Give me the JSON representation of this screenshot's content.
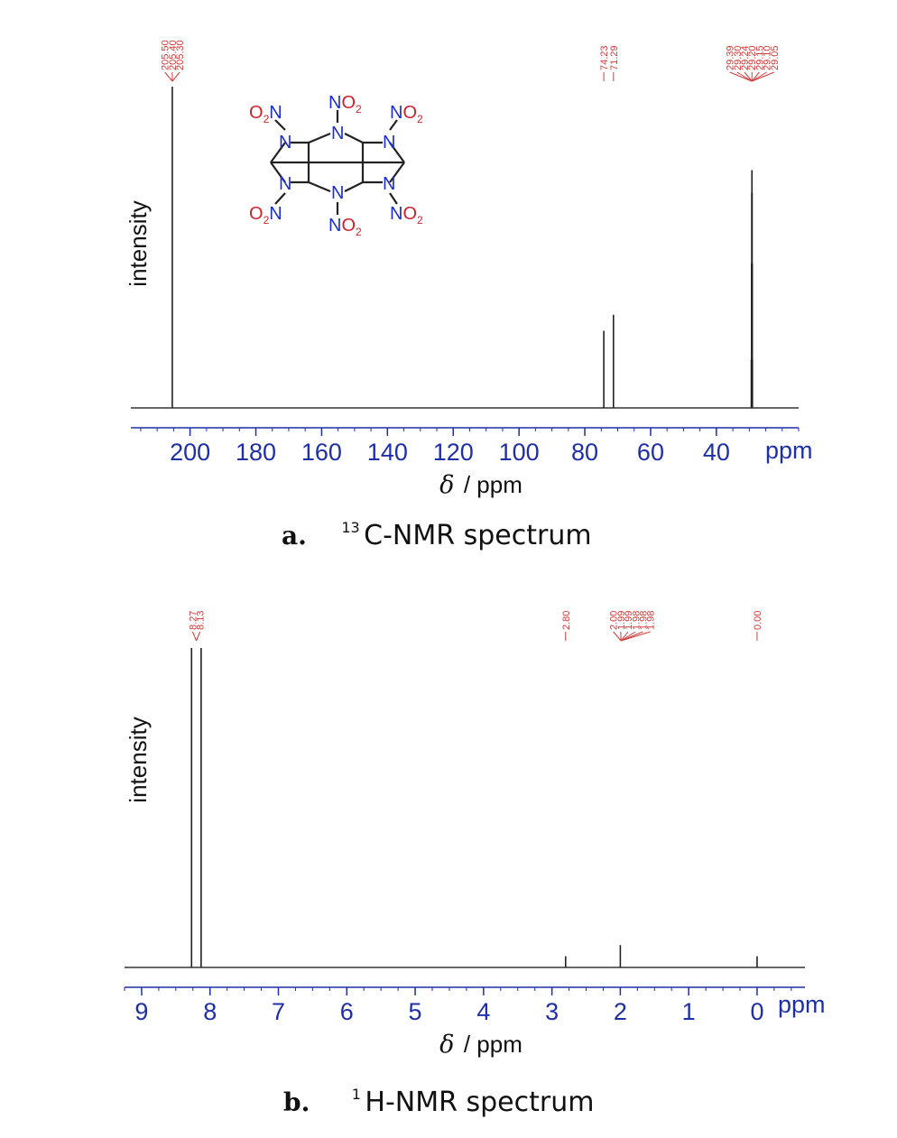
{
  "chart_data": [
    {
      "type": "line",
      "caption_letter": "a.",
      "caption_sup": "13",
      "caption_text": "C-NMR spectrum",
      "ylabel": "intensity",
      "xlabel": "/ ppm",
      "xlabel_symbol": "δ",
      "unit_label": "ppm",
      "xlim": [
        218,
        15
      ],
      "xticks": [
        200,
        180,
        160,
        140,
        120,
        100,
        80,
        60,
        40
      ],
      "peaks": [
        {
          "x": 205.4,
          "height": 1.0
        },
        {
          "x": 74.23,
          "height": 0.24
        },
        {
          "x": 71.29,
          "height": 0.29
        },
        {
          "x": 29.39,
          "height": 0.15
        },
        {
          "x": 29.3,
          "height": 0.45
        },
        {
          "x": 29.24,
          "height": 0.67
        },
        {
          "x": 29.2,
          "height": 0.74
        },
        {
          "x": 29.15,
          "height": 0.67
        },
        {
          "x": 29.1,
          "height": 0.45
        },
        {
          "x": 29.05,
          "height": 0.15
        }
      ],
      "peak_label_groups": [
        {
          "labels": [
            "205.50",
            "205.40",
            "205.30"
          ],
          "target_x": 205.4
        },
        {
          "labels": [
            "74.23"
          ],
          "target_x": 74.23
        },
        {
          "labels": [
            "71.29"
          ],
          "target_x": 71.29
        },
        {
          "labels": [
            "29.39",
            "29.30",
            "29.24",
            "29.20",
            "29.15",
            "29.10",
            "29.05"
          ],
          "target_x": 29.2
        }
      ],
      "structure": {
        "n_label": "N",
        "no2_o": "O",
        "no2_sub": "2",
        "no2_n": "N",
        "substituent_top": "NO",
        "substituent_left": "O",
        "sub2": "2"
      }
    },
    {
      "type": "line",
      "caption_letter": "b.",
      "caption_sup": "1",
      "caption_text": "H-NMR spectrum",
      "ylabel": "intensity",
      "xlabel": "/ ppm",
      "xlabel_symbol": "δ",
      "unit_label": "ppm",
      "xlim": [
        9.25,
        -0.7
      ],
      "xticks": [
        9,
        8,
        7,
        6,
        5,
        4,
        3,
        2,
        1,
        0
      ],
      "peaks": [
        {
          "x": 8.27,
          "height": 1.0
        },
        {
          "x": 8.13,
          "height": 1.0
        },
        {
          "x": 2.8,
          "height": 0.035
        },
        {
          "x": 2.0,
          "height": 0.07
        },
        {
          "x": 0.0,
          "height": 0.035
        }
      ],
      "peak_label_groups": [
        {
          "labels": [
            "8.27",
            "8.13"
          ],
          "target_x": 8.2
        },
        {
          "labels": [
            "2.80"
          ],
          "target_x": 2.8
        },
        {
          "labels": [
            "2.00",
            "1.99",
            "1.99",
            "1.98",
            "1.98",
            "1.98"
          ],
          "target_x": 1.99
        },
        {
          "labels": [
            "0.00"
          ],
          "target_x": 0.0
        }
      ]
    }
  ]
}
